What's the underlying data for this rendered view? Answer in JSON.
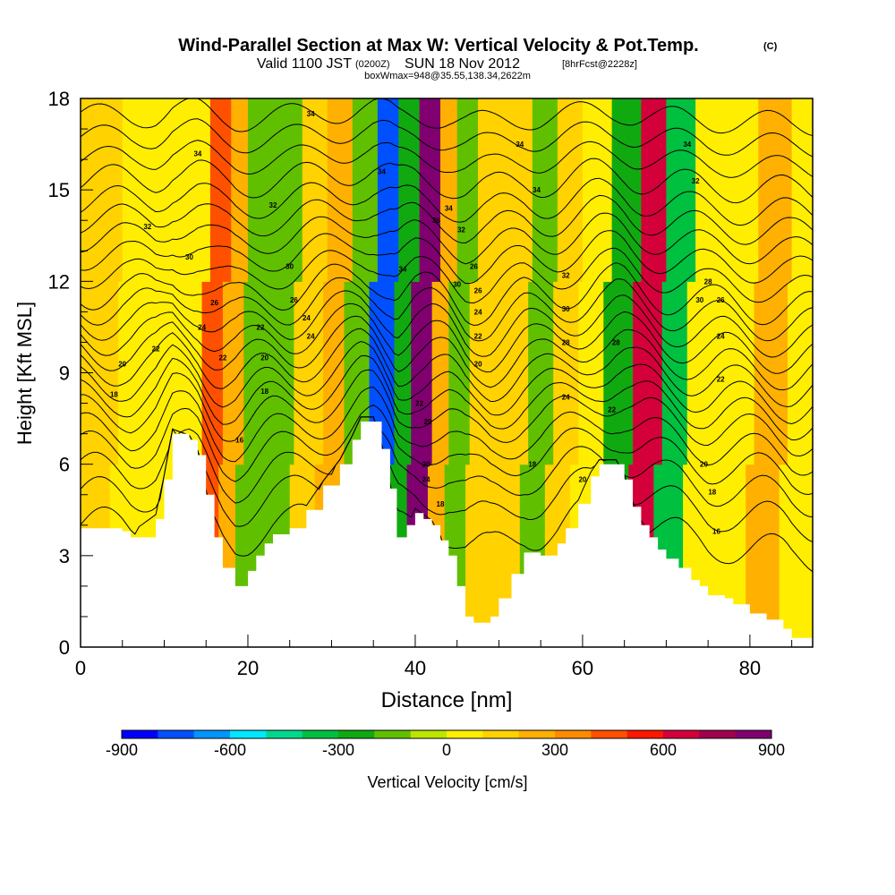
{
  "title": {
    "main": "Wind-Parallel Section at Max W: Vertical Velocity & Pot.Temp.",
    "copyright": "(C)",
    "valid_prefix": "Valid 1100 JST",
    "valid_utc": "(0200Z)",
    "valid_date": "SUN 18 Nov 2012",
    "forecast": "[8hrFcst@2228z]",
    "box": "boxWmax=948@35.55,138.34,2622m"
  },
  "chart_data": {
    "type": "heatmap",
    "xlabel": "Distance [nm]",
    "ylabel": "Height [Kft MSL]",
    "xlim": [
      0,
      87.5
    ],
    "ylim": [
      0,
      18
    ],
    "x_ticks": [
      "0",
      "20",
      "40",
      "60",
      "80"
    ],
    "y_ticks": [
      "0",
      "3",
      "6",
      "9",
      "12",
      "15",
      "18"
    ],
    "colorbar": {
      "label": "Vertical Velocity [cm/s]",
      "range": [
        -900,
        900
      ],
      "tick_labels": [
        "-900",
        "-600",
        "-300",
        "0",
        "300",
        "600",
        "900"
      ],
      "colors": [
        "#0000ff",
        "#0050ff",
        "#0095ff",
        "#00e8ff",
        "#00d88e",
        "#00c040",
        "#10aa10",
        "#60c000",
        "#bce600",
        "#ffee00",
        "#ffd200",
        "#ffb000",
        "#ff8c00",
        "#ff5000",
        "#ff1800",
        "#d4003a",
        "#a0004e",
        "#800070"
      ]
    },
    "velocity_bands": [
      {
        "x": 2,
        "w": 150
      },
      {
        "x": 7,
        "w": 20
      },
      {
        "x": 13.5,
        "w": 0
      },
      {
        "x": 16,
        "w": 480
      },
      {
        "x": 18.5,
        "w": 250
      },
      {
        "x": 20.5,
        "w": -180
      },
      {
        "x": 24,
        "w": -150
      },
      {
        "x": 27.5,
        "w": 180
      },
      {
        "x": 30.5,
        "w": 200
      },
      {
        "x": 33,
        "w": -200
      },
      {
        "x": 36.5,
        "w": -720
      },
      {
        "x": 38.5,
        "w": -250
      },
      {
        "x": 41,
        "w": 880
      },
      {
        "x": 43.5,
        "w": 200
      },
      {
        "x": 45,
        "w": -200
      },
      {
        "x": 48.5,
        "w": 100
      },
      {
        "x": 52,
        "w": 150
      },
      {
        "x": 55,
        "w": -180
      },
      {
        "x": 58,
        "w": 150
      },
      {
        "x": 61,
        "w": 0
      },
      {
        "x": 64.5,
        "w": -260
      },
      {
        "x": 68,
        "w": 620
      },
      {
        "x": 71,
        "w": -330
      },
      {
        "x": 74.5,
        "w": 50
      },
      {
        "x": 78,
        "w": 0
      },
      {
        "x": 83,
        "w": 200
      },
      {
        "x": 86,
        "w": 0
      }
    ],
    "terrain": [
      [
        0,
        3.9
      ],
      [
        5,
        3.8
      ],
      [
        6,
        3.6
      ],
      [
        9,
        4.2
      ],
      [
        10,
        5.5
      ],
      [
        11,
        7.0
      ],
      [
        13,
        6.8
      ],
      [
        14,
        6.3
      ],
      [
        15,
        5.0
      ],
      [
        16,
        3.6
      ],
      [
        17,
        2.6
      ],
      [
        18.5,
        2.0
      ],
      [
        20,
        2.5
      ],
      [
        21,
        3.0
      ],
      [
        22,
        3.4
      ],
      [
        23,
        3.7
      ],
      [
        25,
        3.9
      ],
      [
        27,
        4.5
      ],
      [
        29,
        5.3
      ],
      [
        31,
        6.0
      ],
      [
        32.5,
        6.8
      ],
      [
        33.5,
        7.4
      ],
      [
        35,
        7.4
      ],
      [
        36,
        6.5
      ],
      [
        37,
        5.2
      ],
      [
        37.8,
        3.6
      ],
      [
        39,
        4.0
      ],
      [
        40,
        4.4
      ],
      [
        41,
        4.2
      ],
      [
        42,
        4.0
      ],
      [
        43,
        3.5
      ],
      [
        44,
        3.0
      ],
      [
        45,
        2.0
      ],
      [
        46,
        1.0
      ],
      [
        47,
        0.8
      ],
      [
        49,
        1.0
      ],
      [
        50,
        1.6
      ],
      [
        51.5,
        2.4
      ],
      [
        53,
        3.1
      ],
      [
        55,
        3.0
      ],
      [
        57,
        3.4
      ],
      [
        58,
        3.9
      ],
      [
        59.5,
        4.7
      ],
      [
        61,
        5.6
      ],
      [
        62,
        6.0
      ],
      [
        64,
        6.0
      ],
      [
        65,
        5.5
      ],
      [
        66,
        4.6
      ],
      [
        67,
        4.0
      ],
      [
        68,
        3.6
      ],
      [
        69,
        3.2
      ],
      [
        70,
        2.9
      ],
      [
        71.5,
        2.6
      ],
      [
        73,
        2.2
      ],
      [
        74,
        2.0
      ],
      [
        75,
        1.7
      ],
      [
        77,
        1.6
      ],
      [
        78,
        1.4
      ],
      [
        80,
        1.1
      ],
      [
        82,
        0.9
      ],
      [
        84,
        0.6
      ],
      [
        85,
        0.3
      ],
      [
        87.5,
        0.3
      ]
    ],
    "isentropes": [
      [
        0,
        3.9,
        0.6,
        0.0
      ],
      [
        0,
        4.9,
        0.6,
        0.3
      ],
      [
        0,
        5.7,
        0.6,
        0.6
      ],
      [
        0,
        6.4,
        0.6,
        0.9
      ],
      [
        0,
        7.0,
        0.6,
        1.2
      ],
      [
        0,
        7.6,
        0.6,
        1.5
      ],
      [
        0,
        8.1,
        0.6,
        1.8
      ],
      [
        0,
        8.6,
        0.6,
        2.1
      ],
      [
        0,
        9.1,
        0.6,
        2.4
      ],
      [
        0,
        9.6,
        0.6,
        2.7
      ],
      [
        0,
        10.1,
        0.6,
        3.0
      ],
      [
        0,
        10.6,
        0.6,
        3.3
      ],
      [
        0,
        11.1,
        0.6,
        3.6
      ],
      [
        0,
        11.6,
        0.6,
        3.9
      ],
      [
        0,
        12.2,
        0.5,
        4.2
      ],
      [
        0,
        12.8,
        0.5,
        4.5
      ],
      [
        0,
        13.4,
        0.5,
        4.8
      ],
      [
        0,
        14.0,
        0.5,
        5.1
      ],
      [
        0,
        14.6,
        0.5,
        5.4
      ],
      [
        0,
        15.3,
        0.5,
        5.7
      ],
      [
        0,
        16.0,
        0.4,
        6.0
      ],
      [
        0,
        16.7,
        0.4,
        6.3
      ],
      [
        0,
        17.4,
        0.4,
        6.6
      ]
    ],
    "contour_labels": [
      {
        "x": 4,
        "y": 8.3,
        "text": "18"
      },
      {
        "x": 5,
        "y": 9.3,
        "text": "20"
      },
      {
        "x": 8,
        "y": 13.8,
        "text": "32"
      },
      {
        "x": 9,
        "y": 9.8,
        "text": "22"
      },
      {
        "x": 13,
        "y": 12.8,
        "text": "30"
      },
      {
        "x": 14,
        "y": 16.2,
        "text": "34"
      },
      {
        "x": 14.5,
        "y": 10.5,
        "text": "24"
      },
      {
        "x": 16,
        "y": 11.3,
        "text": "26"
      },
      {
        "x": 17,
        "y": 9.5,
        "text": "22"
      },
      {
        "x": 19,
        "y": 6.8,
        "text": "16"
      },
      {
        "x": 21.5,
        "y": 10.5,
        "text": "22"
      },
      {
        "x": 22,
        "y": 9.5,
        "text": "20"
      },
      {
        "x": 22,
        "y": 8.4,
        "text": "18"
      },
      {
        "x": 23,
        "y": 14.5,
        "text": "32"
      },
      {
        "x": 25,
        "y": 12.5,
        "text": "30"
      },
      {
        "x": 25.5,
        "y": 11.4,
        "text": "26"
      },
      {
        "x": 27,
        "y": 10.8,
        "text": "24"
      },
      {
        "x": 27.5,
        "y": 10.2,
        "text": "24"
      },
      {
        "x": 27.5,
        "y": 17.5,
        "text": "34"
      },
      {
        "x": 36,
        "y": 15.6,
        "text": "34"
      },
      {
        "x": 38.5,
        "y": 12.4,
        "text": "34"
      },
      {
        "x": 40.5,
        "y": 8.0,
        "text": "22"
      },
      {
        "x": 41.5,
        "y": 7.4,
        "text": "20"
      },
      {
        "x": 41.3,
        "y": 6.0,
        "text": "20"
      },
      {
        "x": 41.3,
        "y": 5.5,
        "text": "24"
      },
      {
        "x": 42.5,
        "y": 14.0,
        "text": "36"
      },
      {
        "x": 43,
        "y": 4.7,
        "text": "18"
      },
      {
        "x": 44,
        "y": 14.4,
        "text": "34"
      },
      {
        "x": 45.5,
        "y": 13.7,
        "text": "32"
      },
      {
        "x": 45,
        "y": 11.9,
        "text": "30"
      },
      {
        "x": 47,
        "y": 12.5,
        "text": "26"
      },
      {
        "x": 47.5,
        "y": 11.7,
        "text": "26"
      },
      {
        "x": 47.5,
        "y": 11.0,
        "text": "24"
      },
      {
        "x": 47.5,
        "y": 10.2,
        "text": "22"
      },
      {
        "x": 47.5,
        "y": 9.3,
        "text": "20"
      },
      {
        "x": 52.5,
        "y": 16.5,
        "text": "34"
      },
      {
        "x": 54,
        "y": 6.0,
        "text": "18"
      },
      {
        "x": 54.5,
        "y": 15.0,
        "text": "34"
      },
      {
        "x": 58,
        "y": 12.2,
        "text": "32"
      },
      {
        "x": 58,
        "y": 11.1,
        "text": "30"
      },
      {
        "x": 58,
        "y": 10.0,
        "text": "28"
      },
      {
        "x": 58,
        "y": 8.2,
        "text": "24"
      },
      {
        "x": 60,
        "y": 5.5,
        "text": "20"
      },
      {
        "x": 63.5,
        "y": 7.8,
        "text": "22"
      },
      {
        "x": 64,
        "y": 10.0,
        "text": "28"
      },
      {
        "x": 72.5,
        "y": 16.5,
        "text": "34"
      },
      {
        "x": 73.5,
        "y": 15.3,
        "text": "32"
      },
      {
        "x": 74,
        "y": 11.4,
        "text": "30"
      },
      {
        "x": 74.5,
        "y": 6.0,
        "text": "20"
      },
      {
        "x": 75,
        "y": 12.0,
        "text": "28"
      },
      {
        "x": 75.5,
        "y": 5.1,
        "text": "18"
      },
      {
        "x": 76,
        "y": 3.8,
        "text": "16"
      },
      {
        "x": 76.5,
        "y": 11.4,
        "text": "26"
      },
      {
        "x": 76.5,
        "y": 10.2,
        "text": "24"
      },
      {
        "x": 76.5,
        "y": 8.8,
        "text": "22"
      }
    ]
  }
}
